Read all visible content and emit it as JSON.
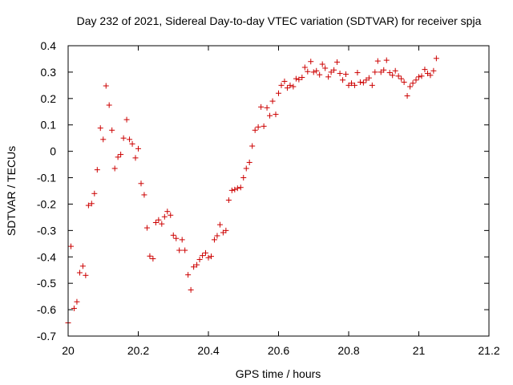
{
  "chart_data": {
    "type": "scatter",
    "title": "Day 232 of 2021, Sidereal Day-to-day VTEC variation (SDTVAR) for receiver spja",
    "xlabel": "GPS time / hours",
    "ylabel": "SDTVAR / TECUs",
    "xlim": [
      20,
      21.2
    ],
    "ylim": [
      -0.7,
      0.4
    ],
    "xticks": [
      20,
      20.2,
      20.4,
      20.6,
      20.8,
      21,
      21.2
    ],
    "xtick_labels": [
      "20",
      "20.2",
      "20.4",
      "20.6",
      "20.8",
      "21",
      "21.2"
    ],
    "yticks": [
      -0.7,
      -0.6,
      -0.5,
      -0.4,
      -0.3,
      -0.2,
      -0.1,
      0,
      0.1,
      0.2,
      0.3,
      0.4
    ],
    "ytick_labels": [
      "-0.7",
      "-0.6",
      "-0.5",
      "-0.4",
      "-0.3",
      "-0.2",
      "-0.1",
      "0",
      "0.1",
      "0.2",
      "0.3",
      "0.4"
    ],
    "marker": "+",
    "marker_color": "#cc0000",
    "series": [
      {
        "name": "SDTVAR",
        "points": [
          [
            20.0,
            -0.65
          ],
          [
            20.008,
            -0.36
          ],
          [
            20.017,
            -0.595
          ],
          [
            20.025,
            -0.57
          ],
          [
            20.033,
            -0.46
          ],
          [
            20.042,
            -0.435
          ],
          [
            20.05,
            -0.47
          ],
          [
            20.058,
            -0.205
          ],
          [
            20.067,
            -0.198
          ],
          [
            20.075,
            -0.16
          ],
          [
            20.083,
            -0.07
          ],
          [
            20.092,
            0.088
          ],
          [
            20.1,
            0.045
          ],
          [
            20.108,
            0.248
          ],
          [
            20.117,
            0.175
          ],
          [
            20.125,
            0.08
          ],
          [
            20.133,
            -0.065
          ],
          [
            20.142,
            -0.022
          ],
          [
            20.15,
            -0.012
          ],
          [
            20.158,
            0.05
          ],
          [
            20.167,
            0.12
          ],
          [
            20.175,
            0.045
          ],
          [
            20.183,
            0.028
          ],
          [
            20.192,
            -0.025
          ],
          [
            20.2,
            0.01
          ],
          [
            20.208,
            -0.122
          ],
          [
            20.217,
            -0.165
          ],
          [
            20.225,
            -0.29
          ],
          [
            20.233,
            -0.397
          ],
          [
            20.242,
            -0.407
          ],
          [
            20.25,
            -0.27
          ],
          [
            20.258,
            -0.26
          ],
          [
            20.267,
            -0.275
          ],
          [
            20.275,
            -0.248
          ],
          [
            20.283,
            -0.228
          ],
          [
            20.292,
            -0.242
          ],
          [
            20.3,
            -0.318
          ],
          [
            20.308,
            -0.33
          ],
          [
            20.317,
            -0.375
          ],
          [
            20.325,
            -0.335
          ],
          [
            20.333,
            -0.375
          ],
          [
            20.342,
            -0.468
          ],
          [
            20.35,
            -0.525
          ],
          [
            20.358,
            -0.438
          ],
          [
            20.367,
            -0.43
          ],
          [
            20.375,
            -0.41
          ],
          [
            20.383,
            -0.395
          ],
          [
            20.392,
            -0.385
          ],
          [
            20.4,
            -0.403
          ],
          [
            20.408,
            -0.398
          ],
          [
            20.417,
            -0.335
          ],
          [
            20.425,
            -0.32
          ],
          [
            20.433,
            -0.278
          ],
          [
            20.442,
            -0.308
          ],
          [
            20.45,
            -0.3
          ],
          [
            20.458,
            -0.185
          ],
          [
            20.467,
            -0.148
          ],
          [
            20.475,
            -0.145
          ],
          [
            20.483,
            -0.14
          ],
          [
            20.492,
            -0.137
          ],
          [
            20.5,
            -0.1
          ],
          [
            20.508,
            -0.065
          ],
          [
            20.517,
            -0.042
          ],
          [
            20.525,
            0.02
          ],
          [
            20.533,
            0.08
          ],
          [
            20.542,
            0.092
          ],
          [
            20.55,
            0.168
          ],
          [
            20.558,
            0.095
          ],
          [
            20.567,
            0.165
          ],
          [
            20.575,
            0.135
          ],
          [
            20.583,
            0.19
          ],
          [
            20.592,
            0.14
          ],
          [
            20.6,
            0.22
          ],
          [
            20.608,
            0.25
          ],
          [
            20.617,
            0.265
          ],
          [
            20.625,
            0.24
          ],
          [
            20.633,
            0.25
          ],
          [
            20.642,
            0.245
          ],
          [
            20.65,
            0.275
          ],
          [
            20.658,
            0.272
          ],
          [
            20.667,
            0.28
          ],
          [
            20.675,
            0.318
          ],
          [
            20.683,
            0.302
          ],
          [
            20.692,
            0.34
          ],
          [
            20.7,
            0.3
          ],
          [
            20.708,
            0.305
          ],
          [
            20.717,
            0.29
          ],
          [
            20.725,
            0.33
          ],
          [
            20.733,
            0.315
          ],
          [
            20.742,
            0.282
          ],
          [
            20.75,
            0.3
          ],
          [
            20.758,
            0.308
          ],
          [
            20.767,
            0.338
          ],
          [
            20.775,
            0.295
          ],
          [
            20.783,
            0.27
          ],
          [
            20.792,
            0.292
          ],
          [
            20.8,
            0.25
          ],
          [
            20.808,
            0.258
          ],
          [
            20.817,
            0.25
          ],
          [
            20.825,
            0.298
          ],
          [
            20.833,
            0.262
          ],
          [
            20.842,
            0.26
          ],
          [
            20.85,
            0.27
          ],
          [
            20.858,
            0.278
          ],
          [
            20.867,
            0.25
          ],
          [
            20.875,
            0.3
          ],
          [
            20.883,
            0.342
          ],
          [
            20.892,
            0.3
          ],
          [
            20.9,
            0.308
          ],
          [
            20.908,
            0.345
          ],
          [
            20.917,
            0.298
          ],
          [
            20.925,
            0.288
          ],
          [
            20.933,
            0.305
          ],
          [
            20.942,
            0.285
          ],
          [
            20.95,
            0.275
          ],
          [
            20.958,
            0.262
          ],
          [
            20.967,
            0.21
          ],
          [
            20.975,
            0.245
          ],
          [
            20.983,
            0.258
          ],
          [
            20.992,
            0.27
          ],
          [
            21.0,
            0.282
          ],
          [
            21.008,
            0.285
          ],
          [
            21.017,
            0.31
          ],
          [
            21.025,
            0.295
          ],
          [
            21.033,
            0.288
          ],
          [
            21.042,
            0.305
          ],
          [
            21.05,
            0.352
          ]
        ]
      }
    ]
  }
}
